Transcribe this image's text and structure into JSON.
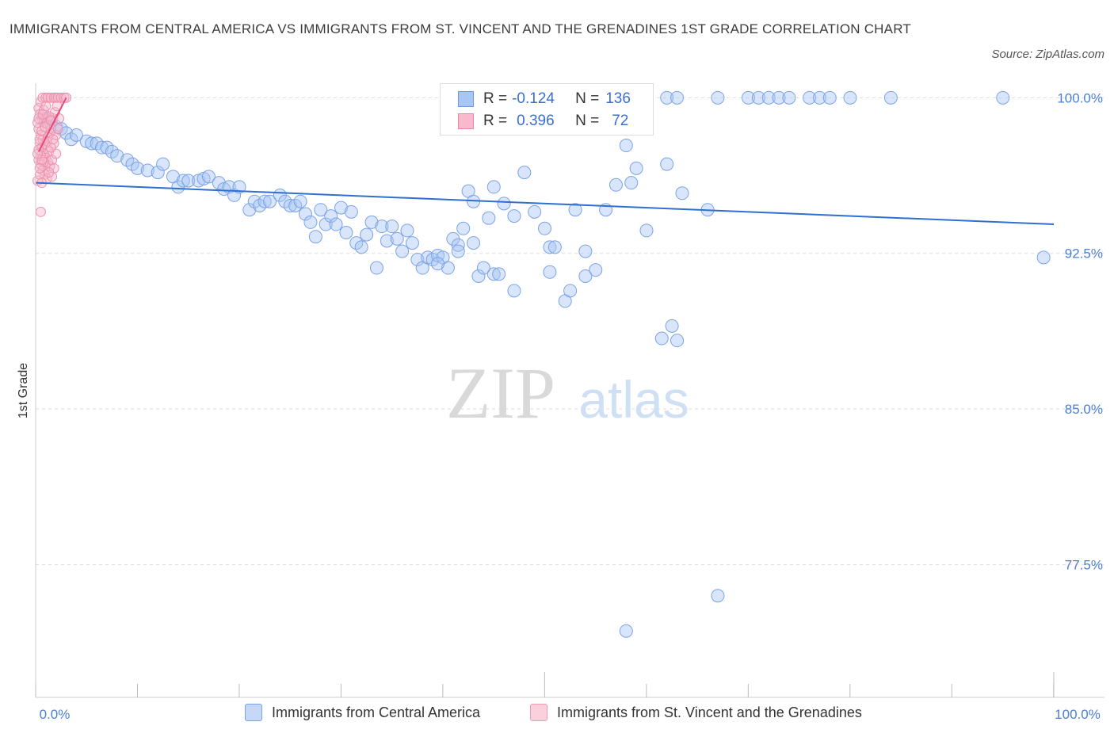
{
  "title": "IMMIGRANTS FROM CENTRAL AMERICA VS IMMIGRANTS FROM ST. VINCENT AND THE GRENADINES 1ST GRADE CORRELATION CHART",
  "source": "Source: ZipAtlas.com",
  "watermark": {
    "zip": "ZIP",
    "atlas": "atlas"
  },
  "legend": {
    "r_label": "R =",
    "n_label": "N =",
    "rows": [
      {
        "r": "-0.124",
        "n": "136",
        "color": "#a8c6f5",
        "border": "#6f9be0"
      },
      {
        "r": "0.396",
        "n": "72",
        "color": "#f7b9cb",
        "border": "#e888a6"
      }
    ]
  },
  "bottom_legend": [
    {
      "label": "Immigrants from Central America",
      "color": "#c5d9f7",
      "border": "#7ba3e6"
    },
    {
      "label": "Immigrants from St. Vincent and the Grenadines",
      "color": "#fbd0dd",
      "border": "#ee9ab4"
    }
  ],
  "chart_data": {
    "type": "scatter",
    "title": "IMMIGRANTS FROM CENTRAL AMERICA VS IMMIGRANTS FROM ST. VINCENT AND THE GRENADINES 1ST GRADE CORRELATION CHART",
    "xlabel": "",
    "ylabel": "1st Grade",
    "xlim": [
      0,
      100
    ],
    "ylim": [
      71.1,
      100.7
    ],
    "x_ticks": [
      "0.0%",
      "100.0%"
    ],
    "y_ticks": [
      {
        "value": 100.0,
        "label": "100.0%"
      },
      {
        "value": 92.5,
        "label": "92.5%"
      },
      {
        "value": 85.0,
        "label": "85.0%"
      },
      {
        "value": 77.5,
        "label": "77.5%"
      }
    ],
    "grid": true,
    "series": [
      {
        "name": "Immigrants from Central America",
        "color": "#a8c6f5",
        "trend": [
          [
            0,
            95.9
          ],
          [
            100,
            93.9
          ]
        ],
        "points": [
          [
            1.0,
            99.0
          ],
          [
            1.5,
            98.8
          ],
          [
            2.0,
            98.6
          ],
          [
            2.5,
            98.5
          ],
          [
            3.0,
            98.3
          ],
          [
            3.5,
            98.0
          ],
          [
            4.0,
            98.2
          ],
          [
            5.0,
            97.9
          ],
          [
            5.5,
            97.8
          ],
          [
            6.0,
            97.8
          ],
          [
            6.5,
            97.6
          ],
          [
            7.0,
            97.6
          ],
          [
            7.5,
            97.4
          ],
          [
            8.0,
            97.2
          ],
          [
            9.0,
            97.0
          ],
          [
            9.5,
            96.8
          ],
          [
            10.0,
            96.6
          ],
          [
            11.0,
            96.5
          ],
          [
            12.0,
            96.4
          ],
          [
            12.5,
            96.8
          ],
          [
            13.5,
            96.2
          ],
          [
            14.0,
            95.7
          ],
          [
            14.5,
            96.0
          ],
          [
            15.0,
            96.0
          ],
          [
            16.0,
            96.0
          ],
          [
            16.5,
            96.1
          ],
          [
            17.0,
            96.2
          ],
          [
            18.0,
            95.9
          ],
          [
            18.5,
            95.6
          ],
          [
            19.0,
            95.7
          ],
          [
            19.5,
            95.3
          ],
          [
            20.0,
            95.7
          ],
          [
            21.0,
            94.6
          ],
          [
            21.5,
            95.0
          ],
          [
            22.0,
            94.8
          ],
          [
            22.5,
            95.0
          ],
          [
            23.0,
            95.0
          ],
          [
            24.0,
            95.3
          ],
          [
            24.5,
            95.0
          ],
          [
            25.0,
            94.8
          ],
          [
            25.5,
            94.8
          ],
          [
            26.0,
            95.0
          ],
          [
            26.5,
            94.4
          ],
          [
            27.0,
            94.0
          ],
          [
            27.5,
            93.3
          ],
          [
            28.0,
            94.6
          ],
          [
            28.5,
            93.9
          ],
          [
            29.0,
            94.3
          ],
          [
            29.5,
            93.9
          ],
          [
            30.0,
            94.7
          ],
          [
            30.5,
            93.5
          ],
          [
            31.0,
            94.5
          ],
          [
            31.5,
            93.0
          ],
          [
            32.0,
            92.8
          ],
          [
            32.5,
            93.4
          ],
          [
            33.0,
            94.0
          ],
          [
            33.5,
            91.8
          ],
          [
            34.0,
            93.8
          ],
          [
            34.5,
            93.1
          ],
          [
            35.0,
            93.8
          ],
          [
            35.5,
            93.2
          ],
          [
            36.0,
            92.6
          ],
          [
            36.5,
            93.6
          ],
          [
            37.0,
            93.0
          ],
          [
            37.5,
            92.2
          ],
          [
            38.0,
            91.8
          ],
          [
            38.5,
            92.3
          ],
          [
            39.0,
            92.2
          ],
          [
            39.5,
            92.4
          ],
          [
            40.0,
            92.3
          ],
          [
            40.5,
            91.8
          ],
          [
            41.0,
            93.2
          ],
          [
            41.5,
            92.9
          ],
          [
            42.0,
            93.7
          ],
          [
            42.5,
            95.5
          ],
          [
            43.0,
            95.0
          ],
          [
            43.5,
            91.4
          ],
          [
            44.0,
            91.8
          ],
          [
            44.5,
            94.2
          ],
          [
            45.0,
            91.5
          ],
          [
            45.5,
            91.5
          ],
          [
            46.0,
            94.9
          ],
          [
            47.0,
            90.7
          ],
          [
            48.0,
            96.4
          ],
          [
            49.0,
            94.5
          ],
          [
            50.0,
            93.7
          ],
          [
            50.5,
            92.8
          ],
          [
            51.0,
            92.8
          ],
          [
            52.0,
            90.2
          ],
          [
            52.5,
            90.7
          ],
          [
            53.0,
            94.6
          ],
          [
            54.0,
            92.6
          ],
          [
            55.0,
            91.7
          ],
          [
            56.0,
            94.6
          ],
          [
            57.0,
            95.8
          ],
          [
            58.0,
            97.7
          ],
          [
            58.5,
            95.9
          ],
          [
            59.0,
            96.6
          ],
          [
            60.0,
            93.6
          ],
          [
            61.5,
            88.4
          ],
          [
            62.5,
            89.0
          ],
          [
            63.0,
            88.3
          ],
          [
            67.0,
            76.0
          ],
          [
            58.0,
            74.3
          ],
          [
            62.0,
            96.8
          ],
          [
            63.5,
            95.4
          ],
          [
            48.0,
            100.0
          ],
          [
            50.0,
            100.0
          ],
          [
            52.0,
            98.6
          ],
          [
            55.0,
            100.0
          ],
          [
            56.0,
            100.0
          ],
          [
            57.0,
            100.0
          ],
          [
            60.0,
            100.0
          ],
          [
            62.0,
            100.0
          ],
          [
            63.0,
            100.0
          ],
          [
            67.0,
            100.0
          ],
          [
            70.0,
            100.0
          ],
          [
            71.0,
            100.0
          ],
          [
            72.0,
            100.0
          ],
          [
            73.0,
            100.0
          ],
          [
            74.0,
            100.0
          ],
          [
            76.0,
            100.0
          ],
          [
            77.0,
            100.0
          ],
          [
            78.0,
            100.0
          ],
          [
            80.0,
            100.0
          ],
          [
            84.0,
            100.0
          ],
          [
            95.0,
            100.0
          ],
          [
            99.0,
            92.3
          ],
          [
            66.0,
            94.6
          ],
          [
            54.0,
            91.4
          ],
          [
            50.5,
            91.6
          ],
          [
            47.0,
            94.3
          ],
          [
            45.0,
            95.7
          ],
          [
            43.0,
            93.0
          ],
          [
            41.5,
            92.6
          ],
          [
            39.5,
            92.0
          ]
        ]
      },
      {
        "name": "Immigrants from St. Vincent and the Grenadines",
        "color": "#f7b9cb",
        "trend": [
          [
            0.3,
            97.4
          ],
          [
            3.0,
            100.0
          ]
        ],
        "points": [
          [
            0.3,
            99.5
          ],
          [
            0.5,
            99.8
          ],
          [
            0.7,
            100.0
          ],
          [
            1.0,
            100.0
          ],
          [
            1.2,
            100.0
          ],
          [
            1.5,
            100.0
          ],
          [
            1.8,
            100.0
          ],
          [
            2.0,
            100.0
          ],
          [
            2.2,
            100.0
          ],
          [
            2.5,
            100.0
          ],
          [
            2.8,
            100.0
          ],
          [
            3.0,
            100.0
          ],
          [
            0.4,
            99.2
          ],
          [
            0.6,
            99.0
          ],
          [
            0.8,
            98.8
          ],
          [
            1.0,
            99.0
          ],
          [
            1.2,
            98.7
          ],
          [
            1.5,
            98.5
          ],
          [
            0.3,
            98.5
          ],
          [
            0.5,
            98.2
          ],
          [
            0.7,
            98.0
          ],
          [
            0.9,
            97.8
          ],
          [
            1.1,
            97.6
          ],
          [
            1.3,
            97.4
          ],
          [
            0.4,
            97.8
          ],
          [
            0.6,
            97.6
          ],
          [
            0.8,
            97.3
          ],
          [
            1.0,
            97.1
          ],
          [
            1.2,
            96.9
          ],
          [
            1.4,
            96.7
          ],
          [
            0.3,
            97.0
          ],
          [
            0.5,
            96.8
          ],
          [
            0.7,
            96.5
          ],
          [
            0.9,
            96.3
          ],
          [
            1.1,
            96.1
          ],
          [
            0.2,
            96.0
          ],
          [
            0.4,
            96.3
          ],
          [
            0.6,
            95.9
          ],
          [
            0.5,
            94.5
          ],
          [
            1.6,
            97.0
          ],
          [
            1.8,
            97.8
          ],
          [
            2.0,
            98.2
          ],
          [
            2.2,
            98.5
          ],
          [
            1.7,
            99.0
          ],
          [
            1.9,
            99.3
          ],
          [
            2.1,
            99.6
          ],
          [
            0.2,
            98.8
          ],
          [
            0.3,
            99.0
          ],
          [
            0.4,
            98.0
          ],
          [
            0.6,
            98.4
          ],
          [
            0.8,
            99.4
          ],
          [
            1.0,
            99.6
          ],
          [
            1.3,
            99.1
          ],
          [
            1.5,
            98.9
          ],
          [
            1.4,
            98.3
          ],
          [
            1.2,
            98.1
          ],
          [
            0.9,
            98.6
          ],
          [
            0.7,
            99.2
          ],
          [
            0.5,
            97.2
          ],
          [
            0.3,
            97.5
          ],
          [
            1.6,
            96.2
          ],
          [
            1.8,
            96.6
          ],
          [
            2.0,
            97.3
          ],
          [
            1.1,
            97.9
          ],
          [
            0.8,
            96.9
          ],
          [
            0.6,
            97.0
          ],
          [
            0.4,
            96.6
          ],
          [
            0.2,
            97.3
          ],
          [
            1.3,
            96.4
          ],
          [
            1.5,
            97.6
          ],
          [
            1.7,
            98.0
          ],
          [
            2.3,
            99.0
          ]
        ]
      }
    ]
  }
}
